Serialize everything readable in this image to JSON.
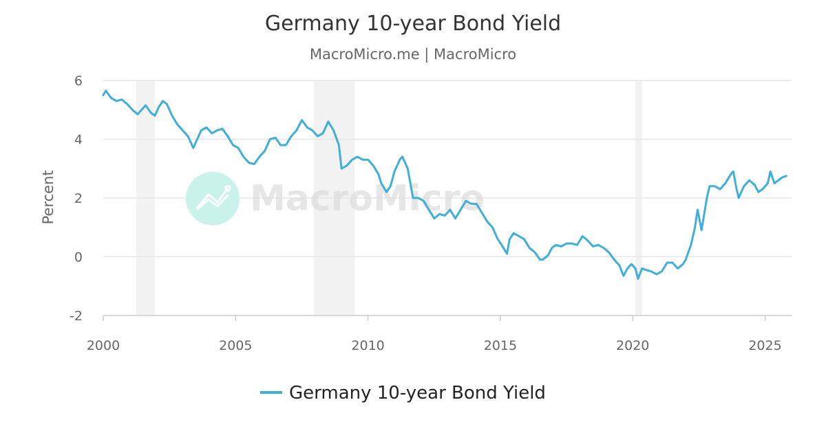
{
  "chart_data": {
    "type": "line",
    "title": "Germany 10-year Bond Yield",
    "subtitle": "MacroMicro.me | MacroMicro",
    "ylabel": "Percent",
    "xlabel": "",
    "xlim": [
      2000,
      2026.0
    ],
    "ylim": [
      -2,
      6
    ],
    "x_ticks": [
      2000,
      2005,
      2010,
      2015,
      2020,
      2025
    ],
    "y_ticks": [
      -2,
      0,
      2,
      4,
      6
    ],
    "grid": true,
    "legend_position": "bottom-center",
    "watermark": "MacroMicro",
    "colors": {
      "series": "#3eaedb",
      "recession": "#f2f2f2",
      "grid": "#e6e6e6",
      "watermark_logo": "#c9f3ea"
    },
    "recession_bands": [
      [
        2001.25,
        2001.95
      ],
      [
        2007.95,
        2009.5
      ],
      [
        2020.1,
        2020.35
      ]
    ],
    "series": [
      {
        "name": "Germany 10-year Bond Yield",
        "points": [
          [
            2000.0,
            5.5
          ],
          [
            2000.1,
            5.65
          ],
          [
            2000.3,
            5.4
          ],
          [
            2000.5,
            5.3
          ],
          [
            2000.7,
            5.35
          ],
          [
            2000.9,
            5.2
          ],
          [
            2001.1,
            5.0
          ],
          [
            2001.3,
            4.85
          ],
          [
            2001.5,
            5.05
          ],
          [
            2001.6,
            5.15
          ],
          [
            2001.8,
            4.9
          ],
          [
            2001.95,
            4.8
          ],
          [
            2002.1,
            5.1
          ],
          [
            2002.25,
            5.3
          ],
          [
            2002.4,
            5.2
          ],
          [
            2002.6,
            4.8
          ],
          [
            2002.8,
            4.5
          ],
          [
            2003.0,
            4.3
          ],
          [
            2003.2,
            4.1
          ],
          [
            2003.4,
            3.7
          ],
          [
            2003.5,
            3.9
          ],
          [
            2003.7,
            4.3
          ],
          [
            2003.9,
            4.4
          ],
          [
            2004.1,
            4.2
          ],
          [
            2004.3,
            4.3
          ],
          [
            2004.5,
            4.35
          ],
          [
            2004.7,
            4.1
          ],
          [
            2004.9,
            3.8
          ],
          [
            2005.1,
            3.7
          ],
          [
            2005.3,
            3.4
          ],
          [
            2005.5,
            3.2
          ],
          [
            2005.7,
            3.15
          ],
          [
            2005.9,
            3.4
          ],
          [
            2006.1,
            3.6
          ],
          [
            2006.3,
            4.0
          ],
          [
            2006.5,
            4.05
          ],
          [
            2006.7,
            3.8
          ],
          [
            2006.9,
            3.8
          ],
          [
            2007.1,
            4.1
          ],
          [
            2007.3,
            4.3
          ],
          [
            2007.5,
            4.65
          ],
          [
            2007.7,
            4.4
          ],
          [
            2007.9,
            4.3
          ],
          [
            2008.1,
            4.1
          ],
          [
            2008.3,
            4.2
          ],
          [
            2008.5,
            4.6
          ],
          [
            2008.7,
            4.3
          ],
          [
            2008.9,
            3.8
          ],
          [
            2009.0,
            3.0
          ],
          [
            2009.2,
            3.1
          ],
          [
            2009.4,
            3.3
          ],
          [
            2009.6,
            3.4
          ],
          [
            2009.8,
            3.3
          ],
          [
            2010.0,
            3.3
          ],
          [
            2010.2,
            3.1
          ],
          [
            2010.4,
            2.8
          ],
          [
            2010.5,
            2.5
          ],
          [
            2010.7,
            2.2
          ],
          [
            2010.85,
            2.4
          ],
          [
            2011.0,
            2.9
          ],
          [
            2011.2,
            3.3
          ],
          [
            2011.3,
            3.4
          ],
          [
            2011.5,
            3.0
          ],
          [
            2011.6,
            2.5
          ],
          [
            2011.7,
            2.0
          ],
          [
            2011.9,
            2.0
          ],
          [
            2012.1,
            1.9
          ],
          [
            2012.3,
            1.6
          ],
          [
            2012.5,
            1.3
          ],
          [
            2012.7,
            1.45
          ],
          [
            2012.9,
            1.4
          ],
          [
            2013.1,
            1.6
          ],
          [
            2013.3,
            1.3
          ],
          [
            2013.5,
            1.6
          ],
          [
            2013.7,
            1.9
          ],
          [
            2013.9,
            1.8
          ],
          [
            2014.1,
            1.8
          ],
          [
            2014.3,
            1.5
          ],
          [
            2014.5,
            1.2
          ],
          [
            2014.7,
            1.0
          ],
          [
            2014.9,
            0.6
          ],
          [
            2015.05,
            0.4
          ],
          [
            2015.25,
            0.1
          ],
          [
            2015.35,
            0.6
          ],
          [
            2015.5,
            0.8
          ],
          [
            2015.7,
            0.7
          ],
          [
            2015.9,
            0.6
          ],
          [
            2016.1,
            0.3
          ],
          [
            2016.3,
            0.15
          ],
          [
            2016.5,
            -0.1
          ],
          [
            2016.6,
            -0.1
          ],
          [
            2016.8,
            0.05
          ],
          [
            2016.95,
            0.3
          ],
          [
            2017.1,
            0.4
          ],
          [
            2017.3,
            0.35
          ],
          [
            2017.5,
            0.45
          ],
          [
            2017.7,
            0.45
          ],
          [
            2017.9,
            0.4
          ],
          [
            2018.1,
            0.7
          ],
          [
            2018.3,
            0.55
          ],
          [
            2018.5,
            0.35
          ],
          [
            2018.7,
            0.4
          ],
          [
            2018.9,
            0.3
          ],
          [
            2019.1,
            0.15
          ],
          [
            2019.3,
            -0.1
          ],
          [
            2019.5,
            -0.3
          ],
          [
            2019.65,
            -0.65
          ],
          [
            2019.8,
            -0.4
          ],
          [
            2019.95,
            -0.25
          ],
          [
            2020.1,
            -0.4
          ],
          [
            2020.2,
            -0.75
          ],
          [
            2020.35,
            -0.4
          ],
          [
            2020.5,
            -0.45
          ],
          [
            2020.7,
            -0.5
          ],
          [
            2020.9,
            -0.6
          ],
          [
            2021.1,
            -0.5
          ],
          [
            2021.3,
            -0.2
          ],
          [
            2021.5,
            -0.2
          ],
          [
            2021.7,
            -0.4
          ],
          [
            2021.9,
            -0.25
          ],
          [
            2022.0,
            -0.1
          ],
          [
            2022.2,
            0.4
          ],
          [
            2022.35,
            1.0
          ],
          [
            2022.45,
            1.6
          ],
          [
            2022.6,
            0.9
          ],
          [
            2022.8,
            2.0
          ],
          [
            2022.9,
            2.4
          ],
          [
            2023.1,
            2.4
          ],
          [
            2023.3,
            2.3
          ],
          [
            2023.5,
            2.5
          ],
          [
            2023.7,
            2.8
          ],
          [
            2023.8,
            2.9
          ],
          [
            2023.9,
            2.4
          ],
          [
            2024.0,
            2.0
          ],
          [
            2024.2,
            2.4
          ],
          [
            2024.4,
            2.6
          ],
          [
            2024.6,
            2.45
          ],
          [
            2024.75,
            2.2
          ],
          [
            2024.9,
            2.3
          ],
          [
            2025.1,
            2.5
          ],
          [
            2025.2,
            2.9
          ],
          [
            2025.35,
            2.5
          ],
          [
            2025.5,
            2.6
          ],
          [
            2025.65,
            2.7
          ],
          [
            2025.8,
            2.75
          ]
        ]
      }
    ]
  }
}
